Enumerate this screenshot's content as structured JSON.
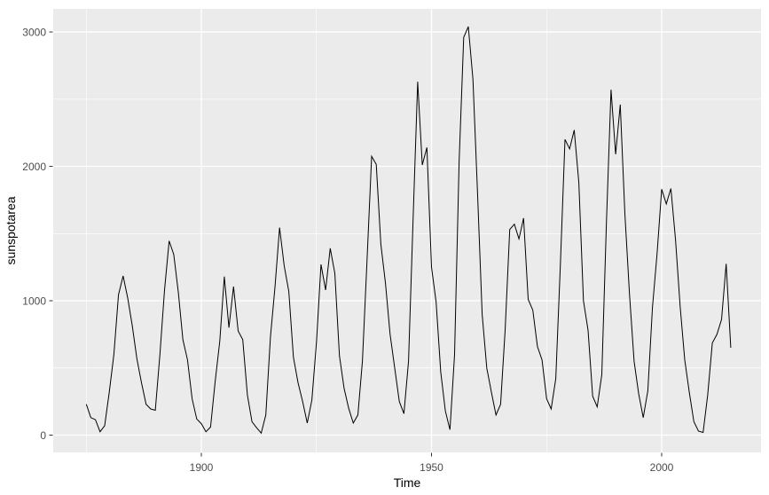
{
  "chart_data": {
    "type": "line",
    "title": "",
    "xlabel": "Time",
    "ylabel": "sunspotarea",
    "legend": "none",
    "grid": "white major and minor gridlines on gray panel",
    "x_range": [
      1875,
      2015
    ],
    "x_step": 1,
    "series": [
      {
        "name": "sunspotarea",
        "values": [
          230,
          130,
          115,
          25,
          70,
          320,
          600,
          1045,
          1185,
          1020,
          815,
          570,
          390,
          230,
          195,
          185,
          600,
          1080,
          1445,
          1345,
          1060,
          710,
          560,
          270,
          120,
          85,
          25,
          60,
          400,
          700,
          1180,
          800,
          1105,
          775,
          710,
          300,
          100,
          55,
          15,
          150,
          730,
          1100,
          1545,
          1260,
          1070,
          580,
          390,
          250,
          90,
          260,
          690,
          1270,
          1080,
          1390,
          1205,
          590,
          350,
          200,
          90,
          150,
          550,
          1300,
          2075,
          2015,
          1420,
          1130,
          750,
          500,
          250,
          160,
          550,
          1600,
          2630,
          2010,
          2140,
          1250,
          990,
          470,
          180,
          40,
          600,
          2030,
          2960,
          3040,
          2650,
          1800,
          900,
          500,
          320,
          150,
          230,
          780,
          1530,
          1570,
          1460,
          1615,
          1010,
          930,
          660,
          560,
          270,
          195,
          420,
          1270,
          2200,
          2130,
          2270,
          1880,
          1000,
          780,
          290,
          210,
          450,
          1580,
          2570,
          2090,
          2460,
          1650,
          1050,
          550,
          310,
          130,
          330,
          950,
          1350,
          1830,
          1720,
          1835,
          1455,
          960,
          560,
          320,
          100,
          30,
          20,
          300,
          685,
          750,
          860,
          1275,
          650
        ]
      }
    ],
    "x_ticks": [
      1900,
      1950,
      2000
    ],
    "x_tick_labels": [
      "1900",
      "1950",
      "2000"
    ],
    "y_ticks": [
      0,
      1000,
      2000,
      3000
    ],
    "y_tick_labels": [
      "0",
      "1000",
      "2000",
      "3000"
    ],
    "ylim": [
      0,
      3040
    ],
    "colors": {
      "page_bg": "#FFFFFF",
      "panel_bg": "#EBEBEB",
      "grid": "#FFFFFF",
      "line": "#000000",
      "tick_mark": "#333333",
      "tick_label": "#4D4D4D",
      "axis_title": "#000000"
    }
  }
}
